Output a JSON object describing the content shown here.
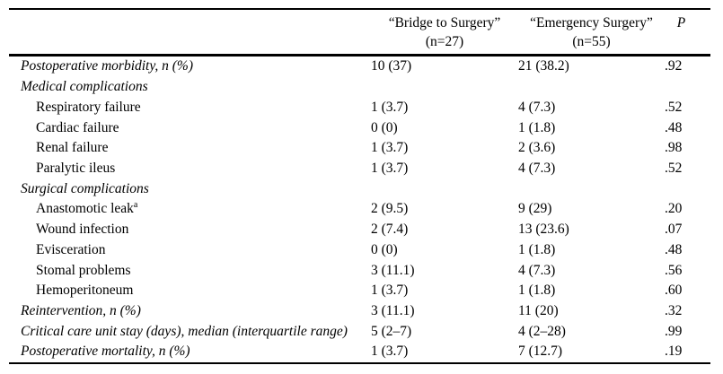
{
  "table": {
    "columns": [
      {
        "label": "",
        "sublabel": ""
      },
      {
        "label": "“Bridge to Surgery”",
        "sublabel": "(n=27)"
      },
      {
        "label": "“Emergency Surgery”",
        "sublabel": "(n=55)"
      },
      {
        "label": "P",
        "sublabel": ""
      }
    ],
    "rows": [
      {
        "label": "Postoperative morbidity, n (%)",
        "sup": "",
        "italic": true,
        "indent": false,
        "bridge": "10 (37)",
        "emergency": "21 (38.2)",
        "p": ".92"
      },
      {
        "label": "Medical complications",
        "sup": "",
        "italic": true,
        "indent": false,
        "bridge": "",
        "emergency": "",
        "p": ""
      },
      {
        "label": "Respiratory failure",
        "sup": "",
        "italic": false,
        "indent": true,
        "bridge": "1 (3.7)",
        "emergency": "4 (7.3)",
        "p": ".52"
      },
      {
        "label": "Cardiac failure",
        "sup": "",
        "italic": false,
        "indent": true,
        "bridge": "0 (0)",
        "emergency": "1 (1.8)",
        "p": ".48"
      },
      {
        "label": "Renal failure",
        "sup": "",
        "italic": false,
        "indent": true,
        "bridge": "1 (3.7)",
        "emergency": "2 (3.6)",
        "p": ".98"
      },
      {
        "label": "Paralytic ileus",
        "sup": "",
        "italic": false,
        "indent": true,
        "bridge": "1 (3.7)",
        "emergency": "4 (7.3)",
        "p": ".52"
      },
      {
        "label": "Surgical complications",
        "sup": "",
        "italic": true,
        "indent": false,
        "bridge": "",
        "emergency": "",
        "p": ""
      },
      {
        "label": "Anastomotic leak",
        "sup": "a",
        "italic": false,
        "indent": true,
        "bridge": "2 (9.5)",
        "emergency": "9 (29)",
        "p": ".20"
      },
      {
        "label": "Wound infection",
        "sup": "",
        "italic": false,
        "indent": true,
        "bridge": "2 (7.4)",
        "emergency": "13 (23.6)",
        "p": ".07"
      },
      {
        "label": "Evisceration",
        "sup": "",
        "italic": false,
        "indent": true,
        "bridge": "0 (0)",
        "emergency": "1 (1.8)",
        "p": ".48"
      },
      {
        "label": "Stomal problems",
        "sup": "",
        "italic": false,
        "indent": true,
        "bridge": "3 (11.1)",
        "emergency": "4 (7.3)",
        "p": ".56"
      },
      {
        "label": "Hemoperitoneum",
        "sup": "",
        "italic": false,
        "indent": true,
        "bridge": "1 (3.7)",
        "emergency": "1 (1.8)",
        "p": ".60"
      },
      {
        "label": "Reintervention, n (%)",
        "sup": "",
        "italic": true,
        "indent": false,
        "bridge": "3 (11.1)",
        "emergency": "11 (20)",
        "p": ".32"
      },
      {
        "label": "Critical care unit stay (days), median (interquartile range)",
        "sup": "",
        "italic": true,
        "indent": false,
        "bridge": "5 (2–7)",
        "emergency": "4 (2–28)",
        "p": ".99"
      },
      {
        "label": "Postoperative mortality, n (%)",
        "sup": "",
        "italic": true,
        "indent": false,
        "bridge": "1 (3.7)",
        "emergency": "7 (12.7)",
        "p": ".19"
      }
    ]
  },
  "colors": {
    "text": "#000000",
    "background": "#ffffff",
    "rule": "#000000"
  }
}
